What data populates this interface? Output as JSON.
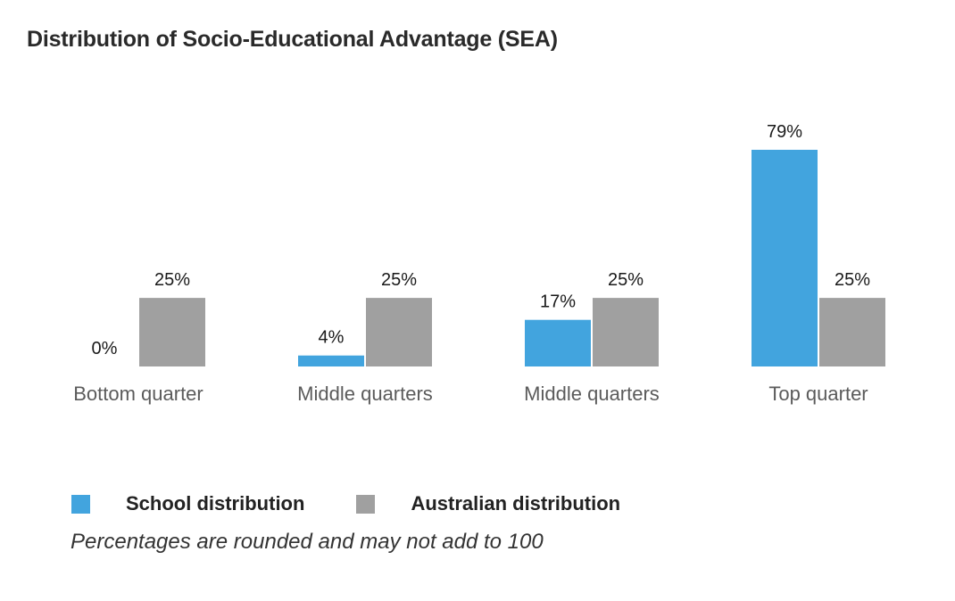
{
  "title": "Distribution of Socio-Educational Advantage (SEA)",
  "footnote": "Percentages are rounded and may not add to 100",
  "colors": {
    "school": "#42a4de",
    "australian": "#a0a0a0",
    "category_label": "#5b5b5b",
    "value_label": "#1a1a1a"
  },
  "legend": [
    {
      "name": "School distribution",
      "color": "#42a4de"
    },
    {
      "name": "Australian distribution",
      "color": "#a0a0a0"
    }
  ],
  "chart_data": {
    "type": "bar",
    "title": "Distribution of Socio-Educational Advantage (SEA)",
    "categories": [
      "Bottom quarter",
      "Middle quarters",
      "Middle quarters",
      "Top quarter"
    ],
    "series": [
      {
        "name": "School distribution",
        "values": [
          0,
          4,
          17,
          79
        ],
        "labels": [
          "0%",
          "4%",
          "17%",
          "79%"
        ]
      },
      {
        "name": "Australian distribution",
        "values": [
          25,
          25,
          25,
          25
        ],
        "labels": [
          "25%",
          "25%",
          "25%",
          "25%"
        ]
      }
    ],
    "ylim": [
      0,
      79
    ],
    "grid": false,
    "legend_position": "bottom-left"
  }
}
